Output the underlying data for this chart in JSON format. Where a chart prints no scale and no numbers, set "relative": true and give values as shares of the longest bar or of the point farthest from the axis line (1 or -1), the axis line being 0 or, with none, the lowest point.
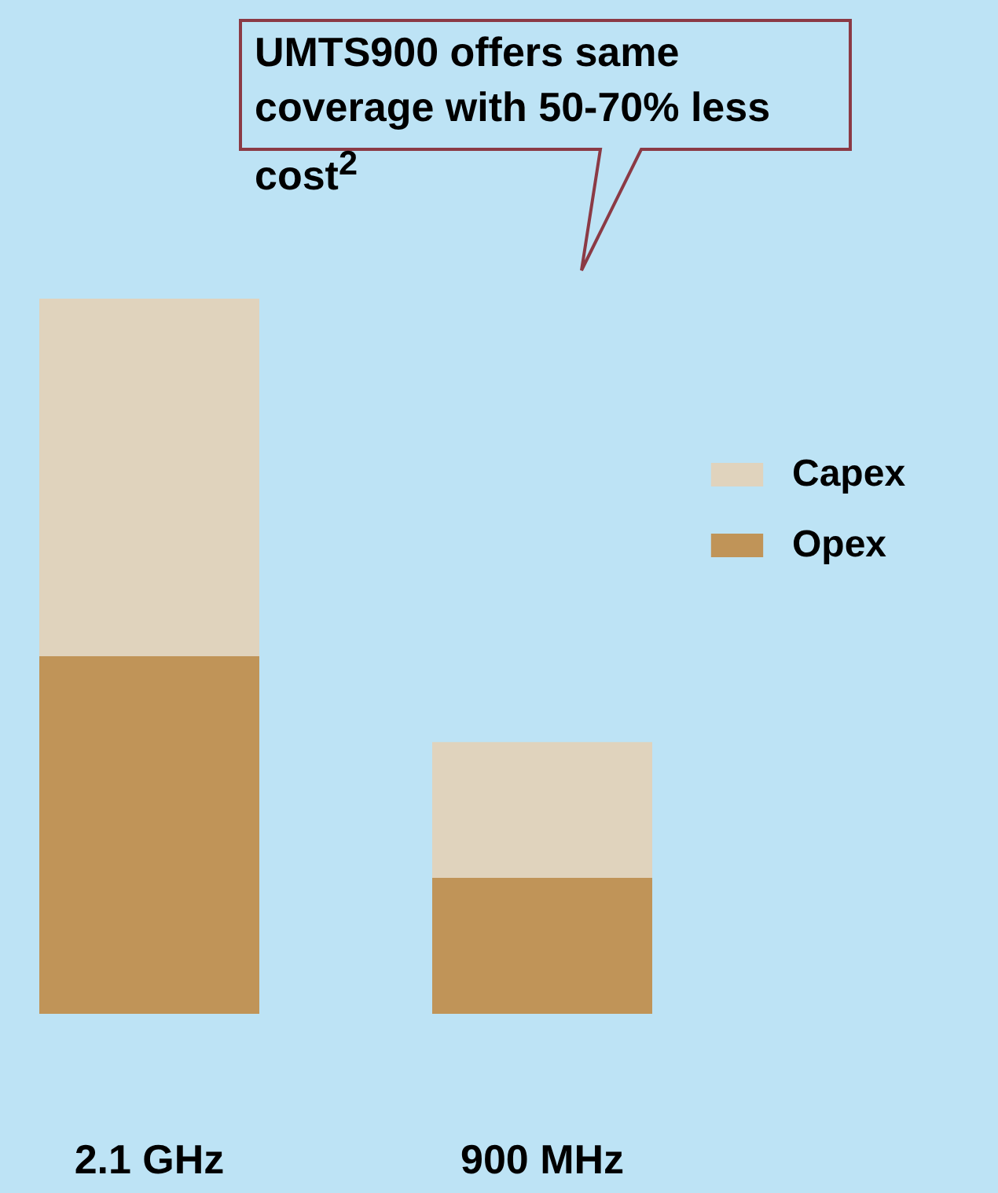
{
  "chart_data": {
    "type": "bar",
    "stacked": true,
    "relative": true,
    "categories": [
      "2.1 GHz",
      "900 MHz"
    ],
    "series": [
      {
        "name": "Opex",
        "color": "#c09458",
        "values": [
          0.5,
          0.19
        ]
      },
      {
        "name": "Capex",
        "color": "#e0d3bd",
        "values": [
          0.5,
          0.19
        ]
      }
    ],
    "legend": "right",
    "annotations": [
      "UMTS900 offers same coverage with 50-70% less cost$^{2}$"
    ]
  }
}
